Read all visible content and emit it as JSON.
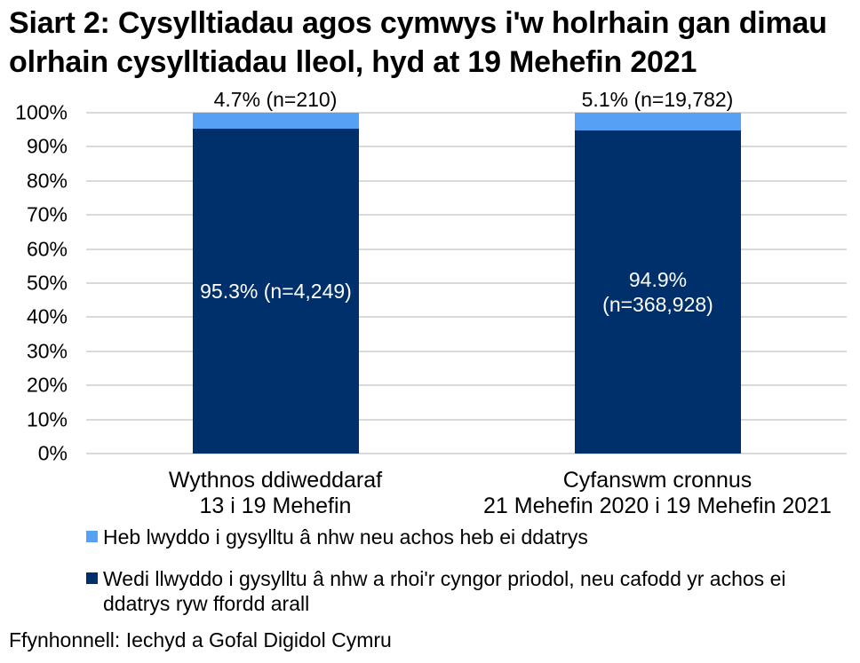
{
  "title": "Siart 2: Cysylltiadau agos cymwys i'w holrhain gan dimau olrhain cysylltiadau lleol, hyd at 19 Mehefin 2021",
  "source": "Ffynhonnell: Iechyd a Gofal Digidol Cymru",
  "colors": {
    "unresolved_light_blue": "#56A0F5",
    "resolved_dark_blue": "#00306B",
    "gridline": "#D9D9D9",
    "text": "#000000",
    "bar_label_text": "#FFFFFF"
  },
  "chart_data": {
    "type": "bar",
    "stacked": true,
    "grid": true,
    "legend_position": "bottom",
    "ylim": [
      0,
      100
    ],
    "yticks_top_to_bottom": [
      "100%",
      "90%",
      "80%",
      "70%",
      "60%",
      "50%",
      "40%",
      "30%",
      "20%",
      "10%",
      "0%"
    ],
    "categories": [
      "Wythnos ddiweddaraf 13 i 19 Mehefin",
      "Cyfanswm cronnus 21 Mehefin 2020 i 19 Mehefin 2021"
    ],
    "series": [
      {
        "name": "Wedi llwyddo i gysylltu â nhw a rhoi'r cyngor priodol, neu cafodd yr achos ei ddatrys ryw ffordd arall",
        "values": [
          95.3,
          94.9
        ],
        "counts": [
          4249,
          368928
        ],
        "color": "#00306B"
      },
      {
        "name": "Heb lwyddo i gysylltu â nhw neu achos heb ei ddatrys",
        "values": [
          4.7,
          5.1
        ],
        "counts": [
          210,
          19782
        ],
        "color": "#56A0F5"
      }
    ],
    "bars": [
      {
        "category_line1": "Wythnos ddiweddaraf",
        "category_line2": "13 i 19 Mehefin",
        "annotation": "4.7% (n=210)",
        "unresolved_pct": 4.7,
        "resolved_pct": 95.3,
        "resolved_label_line1": "95.3% (n=4,249)",
        "resolved_label_line2": ""
      },
      {
        "category_line1": "Cyfanswm cronnus",
        "category_line2": "21 Mehefin 2020 i 19 Mehefin 2021",
        "annotation": "5.1% (n=19,782)",
        "unresolved_pct": 5.1,
        "resolved_pct": 94.9,
        "resolved_label_line1": "94.9%",
        "resolved_label_line2": "(n=368,928)"
      }
    ]
  },
  "legend": [
    {
      "label": "Heb lwyddo i gysylltu â nhw neu achos heb ei ddatrys",
      "color": "#56A0F5"
    },
    {
      "label": "Wedi llwyddo i gysylltu â nhw a rhoi'r cyngor priodol, neu cafodd yr achos ei ddatrys ryw ffordd arall",
      "color": "#00306B"
    }
  ]
}
